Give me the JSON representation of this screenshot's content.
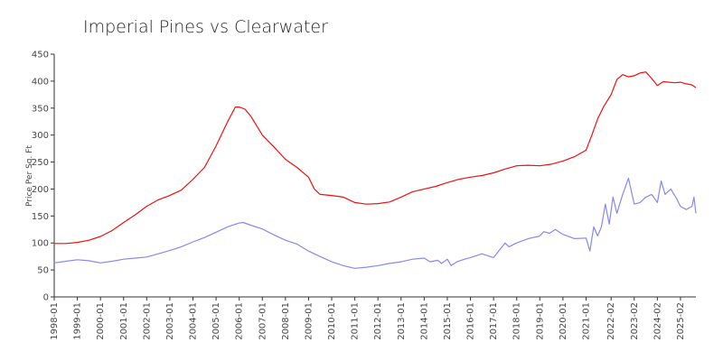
{
  "chart_data": {
    "type": "line",
    "title": "Imperial Pines vs Clearwater",
    "xlabel": "",
    "ylabel": "Price Per Sq. Ft",
    "ylim": [
      0,
      450
    ],
    "xlim": [
      "1998-01",
      "2025-10"
    ],
    "yticks": [
      0,
      50,
      100,
      150,
      200,
      250,
      300,
      350,
      400,
      450
    ],
    "xticks": [
      "1998-01",
      "1999-01",
      "2000-01",
      "2001-01",
      "2002-01",
      "2003-01",
      "2004-01",
      "2005-01",
      "2006-01",
      "2007-01",
      "2008-01",
      "2009-01",
      "2010-01",
      "2011-01",
      "2012-01",
      "2013-01",
      "2014-01",
      "2015-01",
      "2016-01",
      "2017-01",
      "2018-01",
      "2019-01",
      "2020-01",
      "2021-01",
      "2022-02",
      "2023-02",
      "2024-02",
      "2025-02"
    ],
    "grid": false,
    "series": [
      {
        "color": "#ee1111",
        "points": [
          [
            "1998-01",
            99
          ],
          [
            "1998-07",
            99
          ],
          [
            "1999-01",
            101
          ],
          [
            "1999-07",
            105
          ],
          [
            "2000-01",
            112
          ],
          [
            "2000-07",
            123
          ],
          [
            "2001-01",
            138
          ],
          [
            "2001-07",
            152
          ],
          [
            "2002-01",
            168
          ],
          [
            "2002-07",
            180
          ],
          [
            "2003-01",
            188
          ],
          [
            "2003-07",
            198
          ],
          [
            "2004-01",
            218
          ],
          [
            "2004-07",
            240
          ],
          [
            "2005-01",
            280
          ],
          [
            "2005-07",
            325
          ],
          [
            "2005-11",
            352
          ],
          [
            "2006-01",
            352
          ],
          [
            "2006-04",
            348
          ],
          [
            "2006-07",
            335
          ],
          [
            "2007-01",
            300
          ],
          [
            "2007-07",
            278
          ],
          [
            "2008-01",
            255
          ],
          [
            "2008-07",
            240
          ],
          [
            "2009-01",
            222
          ],
          [
            "2009-04",
            200
          ],
          [
            "2009-07",
            190
          ],
          [
            "2010-01",
            188
          ],
          [
            "2010-07",
            185
          ],
          [
            "2011-01",
            175
          ],
          [
            "2011-07",
            172
          ],
          [
            "2012-01",
            173
          ],
          [
            "2012-07",
            176
          ],
          [
            "2013-01",
            185
          ],
          [
            "2013-07",
            195
          ],
          [
            "2014-01",
            200
          ],
          [
            "2014-07",
            205
          ],
          [
            "2015-01",
            212
          ],
          [
            "2015-07",
            218
          ],
          [
            "2016-01",
            222
          ],
          [
            "2016-07",
            225
          ],
          [
            "2017-01",
            230
          ],
          [
            "2017-07",
            237
          ],
          [
            "2018-01",
            243
          ],
          [
            "2018-07",
            244
          ],
          [
            "2019-01",
            243
          ],
          [
            "2019-07",
            246
          ],
          [
            "2020-01",
            252
          ],
          [
            "2020-07",
            260
          ],
          [
            "2021-01",
            272
          ],
          [
            "2021-04",
            300
          ],
          [
            "2021-07",
            330
          ],
          [
            "2021-10",
            352
          ],
          [
            "2022-02",
            375
          ],
          [
            "2022-05",
            403
          ],
          [
            "2022-08",
            412
          ],
          [
            "2022-11",
            408
          ],
          [
            "2023-02",
            410
          ],
          [
            "2023-05",
            415
          ],
          [
            "2023-08",
            417
          ],
          [
            "2023-11",
            405
          ],
          [
            "2024-02",
            392
          ],
          [
            "2024-05",
            399
          ],
          [
            "2024-08",
            398
          ],
          [
            "2024-11",
            397
          ],
          [
            "2025-02",
            398
          ],
          [
            "2025-05",
            395
          ],
          [
            "2025-08",
            393
          ],
          [
            "2025-10",
            388
          ]
        ]
      },
      {
        "color": "#8888ee",
        "points": [
          [
            "1998-01",
            63
          ],
          [
            "1998-07",
            66
          ],
          [
            "1999-01",
            69
          ],
          [
            "1999-07",
            67
          ],
          [
            "2000-01",
            63
          ],
          [
            "2000-07",
            66
          ],
          [
            "2001-01",
            70
          ],
          [
            "2001-07",
            72
          ],
          [
            "2002-01",
            74
          ],
          [
            "2002-07",
            80
          ],
          [
            "2003-01",
            86
          ],
          [
            "2003-07",
            93
          ],
          [
            "2004-01",
            102
          ],
          [
            "2004-07",
            110
          ],
          [
            "2005-01",
            120
          ],
          [
            "2005-07",
            130
          ],
          [
            "2006-01",
            137
          ],
          [
            "2006-03",
            138
          ],
          [
            "2006-07",
            133
          ],
          [
            "2007-01",
            126
          ],
          [
            "2007-07",
            115
          ],
          [
            "2008-01",
            105
          ],
          [
            "2008-07",
            98
          ],
          [
            "2009-01",
            85
          ],
          [
            "2009-07",
            75
          ],
          [
            "2010-01",
            65
          ],
          [
            "2010-07",
            58
          ],
          [
            "2011-01",
            53
          ],
          [
            "2011-07",
            55
          ],
          [
            "2012-01",
            58
          ],
          [
            "2012-07",
            62
          ],
          [
            "2013-01",
            65
          ],
          [
            "2013-07",
            70
          ],
          [
            "2014-01",
            72
          ],
          [
            "2014-04",
            65
          ],
          [
            "2014-08",
            68
          ],
          [
            "2014-10",
            62
          ],
          [
            "2015-01",
            70
          ],
          [
            "2015-03",
            58
          ],
          [
            "2015-06",
            65
          ],
          [
            "2015-10",
            70
          ],
          [
            "2016-01",
            73
          ],
          [
            "2016-07",
            80
          ],
          [
            "2017-01",
            73
          ],
          [
            "2017-07",
            100
          ],
          [
            "2017-09",
            93
          ],
          [
            "2018-01",
            100
          ],
          [
            "2018-07",
            108
          ],
          [
            "2019-01",
            113
          ],
          [
            "2019-03",
            121
          ],
          [
            "2019-06",
            118
          ],
          [
            "2019-09",
            125
          ],
          [
            "2020-01",
            116
          ],
          [
            "2020-07",
            108
          ],
          [
            "2021-01",
            109
          ],
          [
            "2021-03",
            85
          ],
          [
            "2021-05",
            130
          ],
          [
            "2021-07",
            113
          ],
          [
            "2021-09",
            130
          ],
          [
            "2021-11",
            172
          ],
          [
            "2022-01",
            135
          ],
          [
            "2022-03",
            185
          ],
          [
            "2022-05",
            155
          ],
          [
            "2022-08",
            190
          ],
          [
            "2022-11",
            220
          ],
          [
            "2023-02",
            172
          ],
          [
            "2023-05",
            175
          ],
          [
            "2023-08",
            185
          ],
          [
            "2023-11",
            190
          ],
          [
            "2024-02",
            175
          ],
          [
            "2024-04",
            215
          ],
          [
            "2024-06",
            190
          ],
          [
            "2024-09",
            200
          ],
          [
            "2024-12",
            182
          ],
          [
            "2025-02",
            168
          ],
          [
            "2025-05",
            162
          ],
          [
            "2025-08",
            168
          ],
          [
            "2025-09",
            185
          ],
          [
            "2025-10",
            155
          ]
        ]
      }
    ]
  }
}
